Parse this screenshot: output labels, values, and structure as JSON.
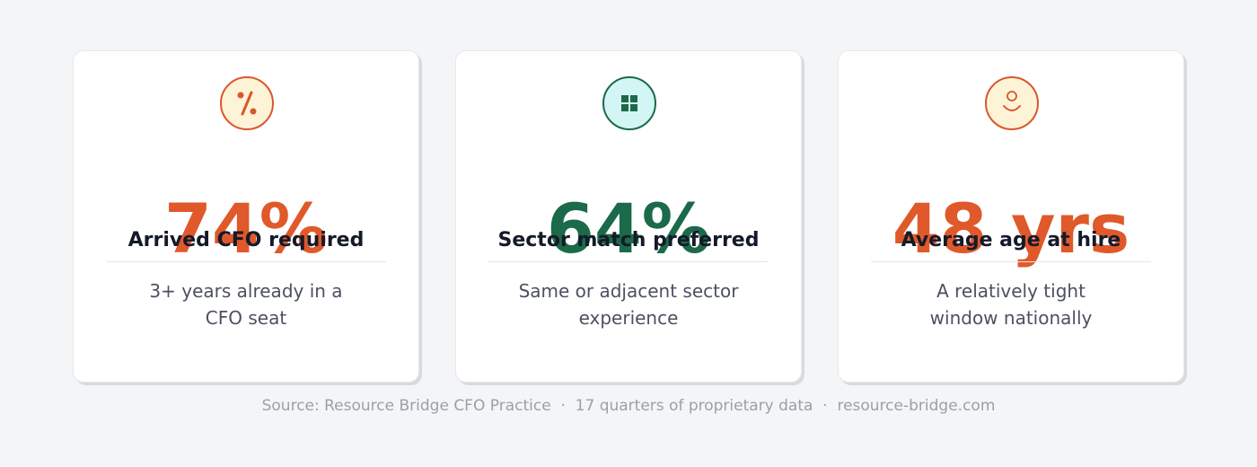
{
  "cards": [
    {
      "value": "74%",
      "label": "Arrived CFO required",
      "description": [
        "3+ years already in a",
        "CFO seat"
      ]
    },
    {
      "value": "64%",
      "label": "Sector match preferred",
      "description": [
        "Same or adjacent sector",
        "experience"
      ]
    },
    {
      "value": "48 yrs",
      "label": "Average age at hire",
      "description": [
        "A relatively tight",
        "window nationally"
      ]
    }
  ],
  "footer": "Source: Resource Bridge CFO Practice  ·  17 quarters of proprietary data  ·  resource-bridge.com"
}
